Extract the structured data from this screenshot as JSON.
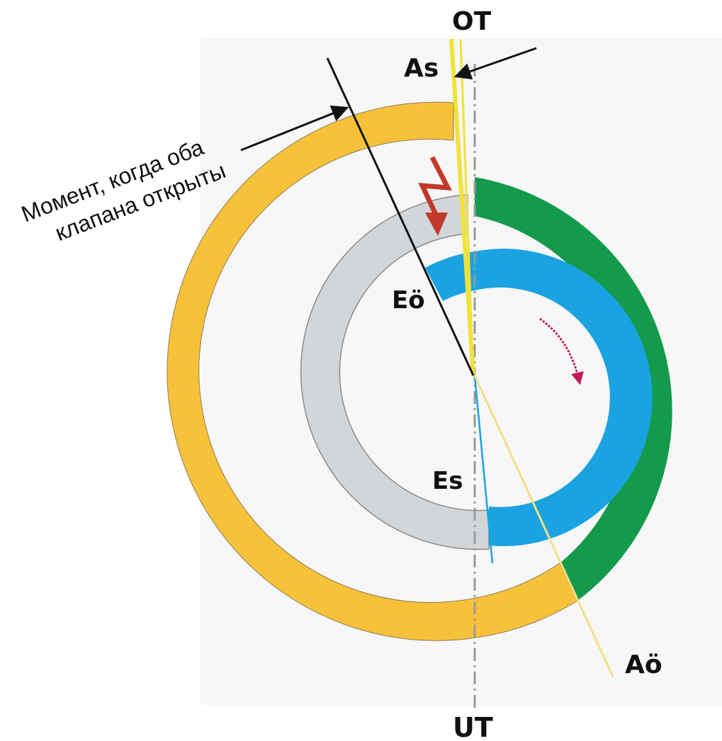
{
  "labels": {
    "ot": "OT",
    "ut": "UT",
    "as": "As",
    "ao": "Aö",
    "eo": "Eö",
    "es": "Es"
  },
  "annotation": {
    "line1": "Момент, когда оба",
    "line2": "клапана открыты"
  },
  "colors": {
    "intake": "#f8c13a",
    "compression": "#149a4c",
    "exhaust": "#d3d6d9",
    "power": "#1aa3e0",
    "overlap_line": "#f0e23a",
    "axis": "#9a9a9a",
    "rotation_arrow": "#c2185b",
    "flow_arrow": "#c0392b"
  }
}
